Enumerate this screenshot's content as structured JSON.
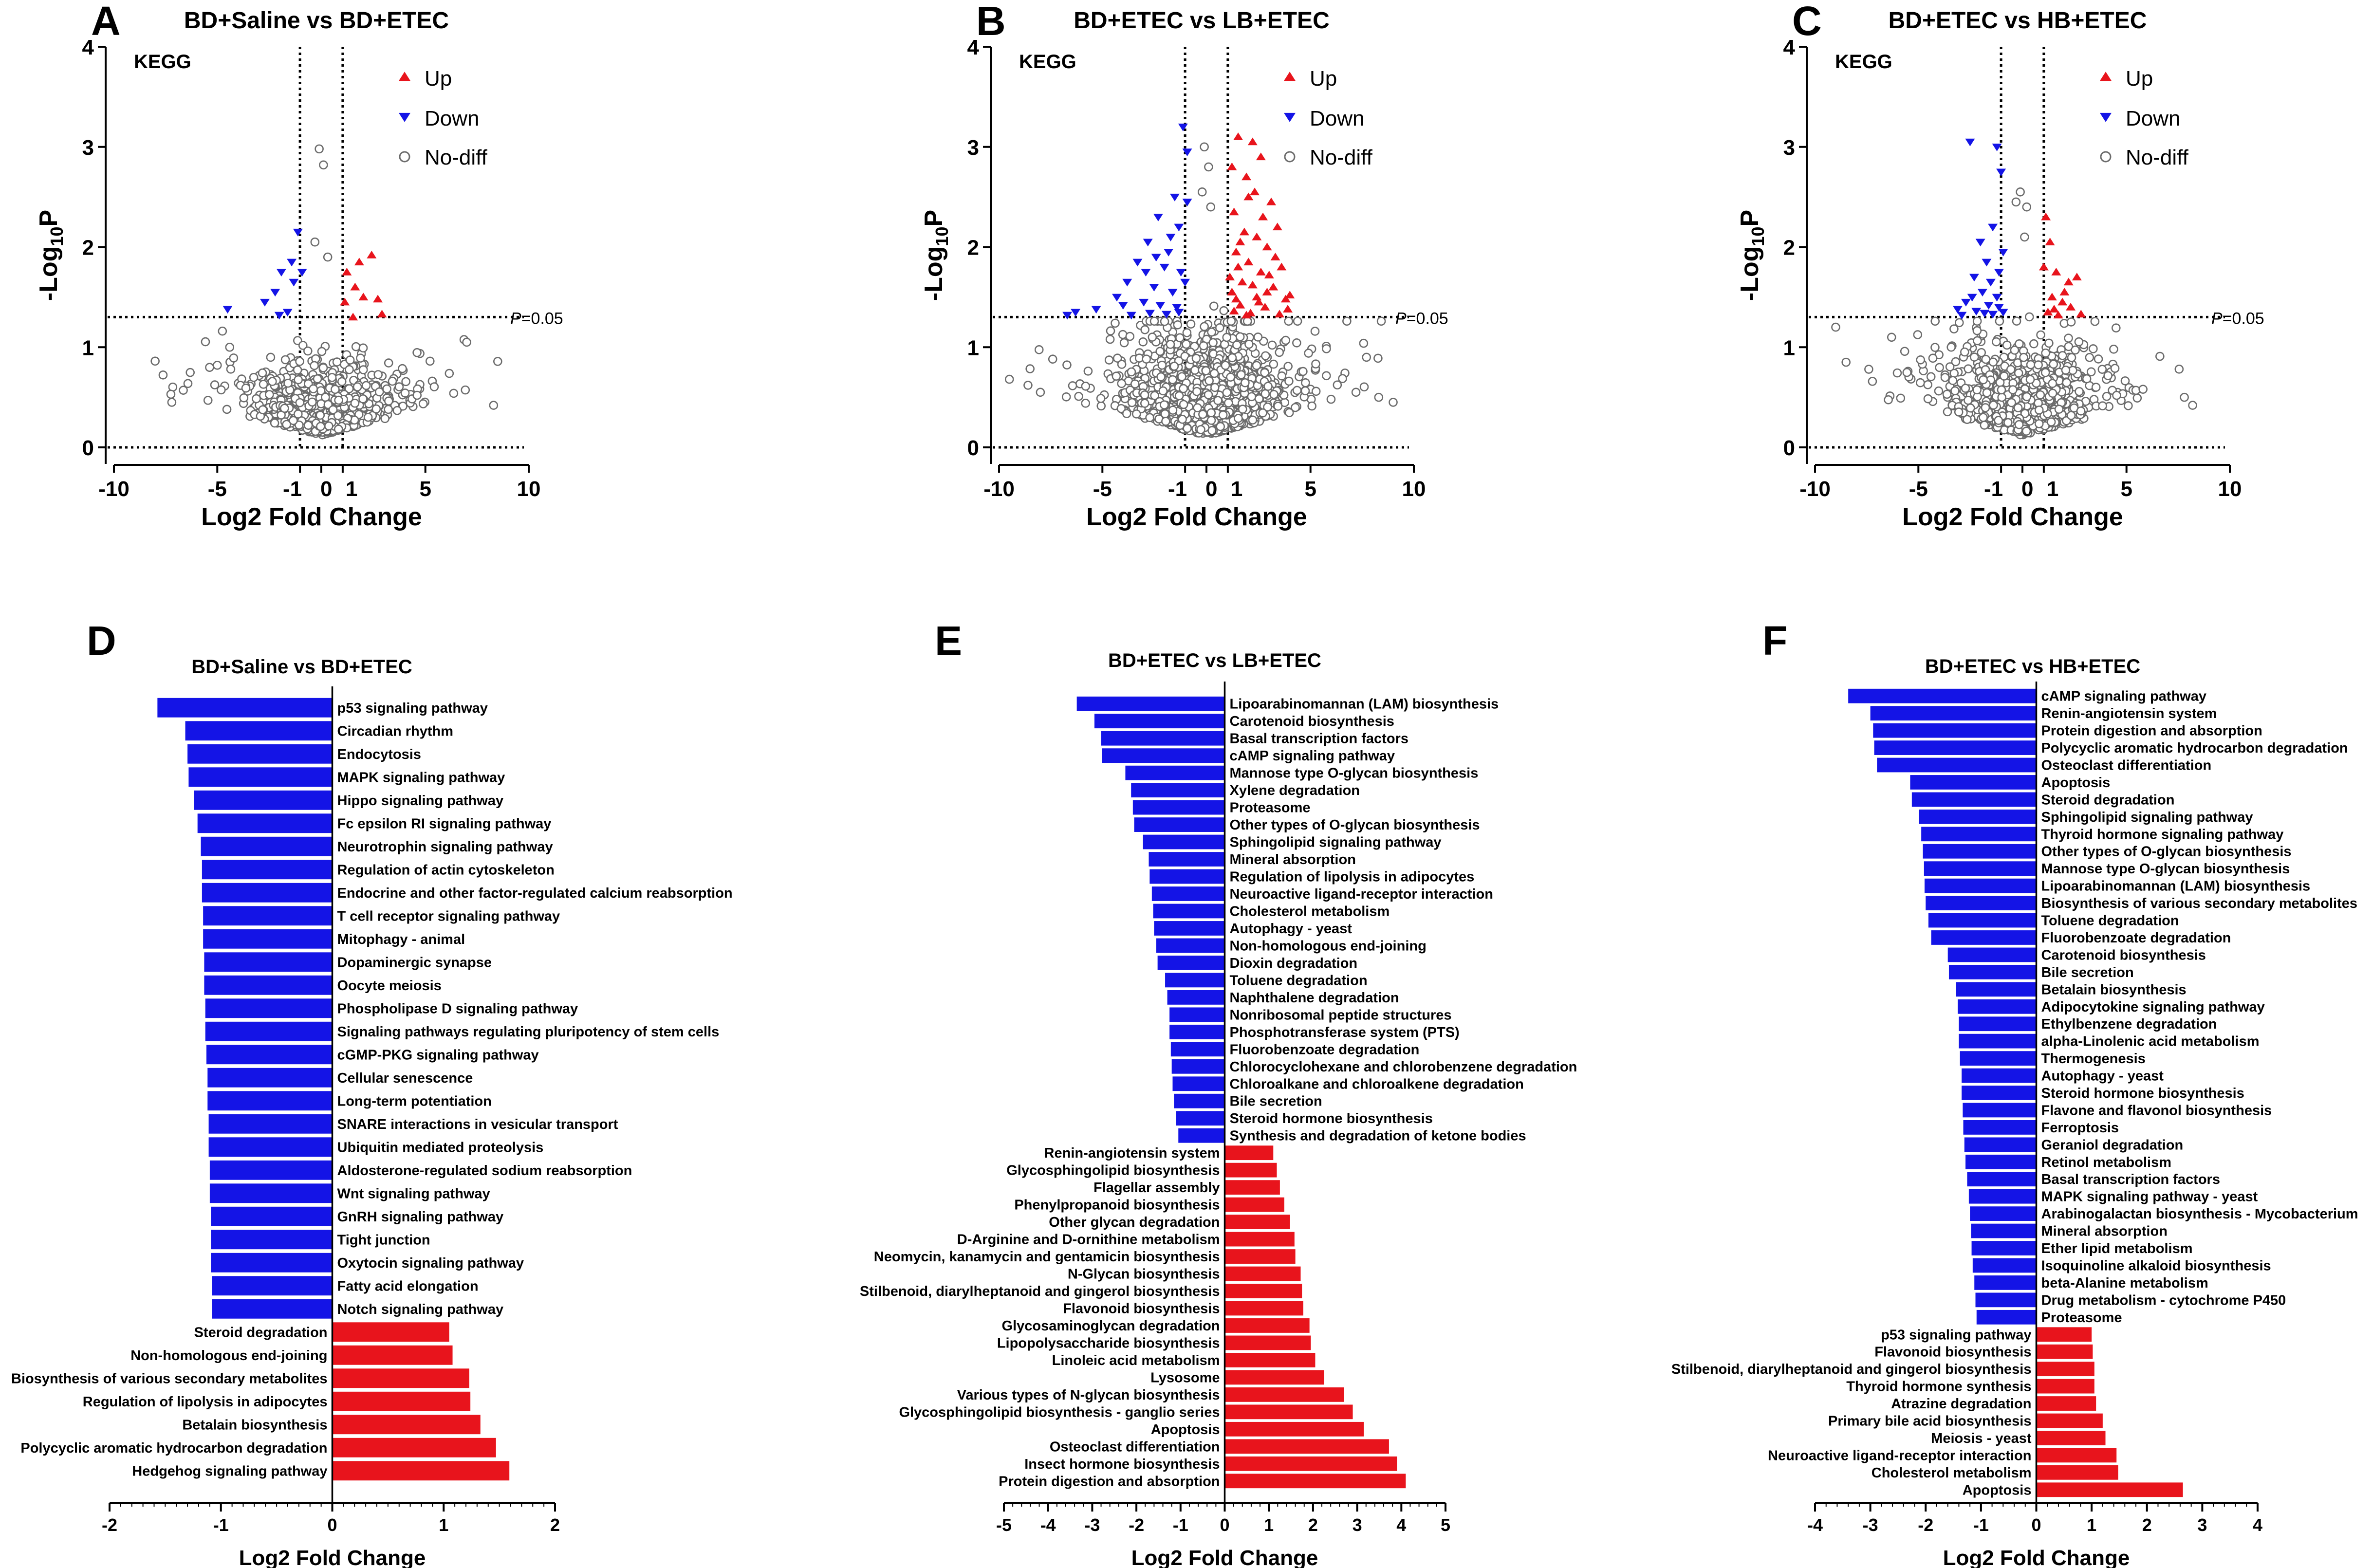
{
  "colors": {
    "up": "#e8141c",
    "down": "#1414e6",
    "nodiff": "#6b6b6b",
    "axis": "#000000"
  },
  "chart_data": [
    {
      "id": "A",
      "type": "scatter",
      "title": "BD+Saline vs BD+ETEC",
      "xlabel": "Log2 Fold Change",
      "ylabel": "-Log10P",
      "ylabel_main": "-Log",
      "ylabel_sub": "10",
      "ylabel_end": "P",
      "xlim": [
        -10,
        10
      ],
      "ylim": [
        0,
        4
      ],
      "xticks": [
        "-10",
        "-5",
        "-1",
        "0",
        "1",
        "5",
        "10"
      ],
      "yticks": [
        "0",
        "1",
        "2",
        "3",
        "4"
      ],
      "tag": "KEGG",
      "threshold_label": "P=0.05",
      "threshold_p": "P",
      "threshold_val": "=0.05",
      "threshold_y": 1.301,
      "legend": [
        "Up",
        "Down",
        "No-diff"
      ],
      "spread": 0.55,
      "nodiff_n": 900,
      "seed": 11,
      "up": [
        [
          1.2,
          1.75
        ],
        [
          1.6,
          1.6
        ],
        [
          2.4,
          1.92
        ],
        [
          1.1,
          1.45
        ],
        [
          1.8,
          1.85
        ],
        [
          2.0,
          1.5
        ],
        [
          2.7,
          1.48
        ],
        [
          2.9,
          1.33
        ],
        [
          1.5,
          1.3
        ]
      ],
      "down": [
        [
          -1.1,
          2.15
        ],
        [
          -1.3,
          1.65
        ],
        [
          -1.9,
          1.75
        ],
        [
          -2.2,
          1.55
        ],
        [
          -2.7,
          1.45
        ],
        [
          -4.5,
          1.38
        ],
        [
          -1.4,
          1.85
        ],
        [
          -1.6,
          1.35
        ],
        [
          -2.0,
          1.32
        ],
        [
          -0.9,
          1.75
        ]
      ],
      "nodiff_extra": [
        [
          -0.1,
          2.98
        ],
        [
          0.1,
          2.82
        ],
        [
          -0.3,
          2.05
        ],
        [
          0.3,
          1.9
        ],
        [
          -4.4,
          1.0
        ],
        [
          -5.0,
          0.82
        ],
        [
          4.6,
          0.52
        ],
        [
          7.0,
          1.05
        ],
        [
          8.3,
          0.42
        ],
        [
          -7.2,
          0.45
        ]
      ]
    },
    {
      "id": "B",
      "type": "scatter",
      "title": "BD+ETEC vs LB+ETEC",
      "xlabel": "Log2 Fold Change",
      "ylabel": "-Log10P",
      "ylabel_main": "-Log",
      "ylabel_sub": "10",
      "ylabel_end": "P",
      "xlim": [
        -10,
        10
      ],
      "ylim": [
        0,
        4
      ],
      "xticks": [
        "-10",
        "-5",
        "-1",
        "0",
        "1",
        "5",
        "10"
      ],
      "yticks": [
        "0",
        "1",
        "2",
        "3",
        "4"
      ],
      "tag": "KEGG",
      "threshold_label": "P=0.05",
      "threshold_p": "P",
      "threshold_val": "=0.05",
      "threshold_y": 1.301,
      "legend": [
        "Up",
        "Down",
        "No-diff"
      ],
      "spread": 0.75,
      "nodiff_n": 1500,
      "seed": 23,
      "up": [
        [
          1.5,
          3.1
        ],
        [
          2.2,
          3.05
        ],
        [
          2.6,
          2.9
        ],
        [
          1.9,
          2.7
        ],
        [
          2.3,
          2.55
        ],
        [
          3.1,
          2.45
        ],
        [
          1.3,
          2.35
        ],
        [
          3.4,
          2.2
        ],
        [
          1.8,
          2.15
        ],
        [
          2.9,
          2.0
        ],
        [
          1.4,
          1.95
        ],
        [
          2.0,
          1.85
        ],
        [
          3.6,
          1.8
        ],
        [
          2.6,
          1.75
        ],
        [
          1.7,
          1.65
        ],
        [
          3.2,
          1.6
        ],
        [
          1.2,
          1.55
        ],
        [
          2.4,
          1.5
        ],
        [
          3.8,
          1.48
        ],
        [
          1.6,
          1.42
        ],
        [
          2.8,
          1.4
        ],
        [
          1.3,
          1.36
        ],
        [
          2.1,
          1.34
        ],
        [
          3.5,
          1.33
        ],
        [
          1.9,
          1.32
        ],
        [
          2.5,
          1.45
        ],
        [
          1.1,
          1.7
        ],
        [
          4.0,
          1.52
        ],
        [
          3.0,
          1.72
        ],
        [
          1.5,
          1.8
        ],
        [
          2.7,
          2.3
        ],
        [
          2.0,
          2.5
        ],
        [
          1.6,
          2.05
        ],
        [
          3.3,
          1.9
        ],
        [
          1.2,
          2.8
        ],
        [
          2.4,
          2.1
        ],
        [
          3.9,
          1.38
        ],
        [
          2.2,
          1.62
        ],
        [
          1.4,
          1.48
        ],
        [
          2.9,
          1.55
        ]
      ],
      "down": [
        [
          -1.1,
          3.2
        ],
        [
          -0.9,
          2.95
        ],
        [
          -1.5,
          2.5
        ],
        [
          -2.3,
          2.3
        ],
        [
          -1.3,
          2.2
        ],
        [
          -2.8,
          2.05
        ],
        [
          -1.8,
          1.95
        ],
        [
          -0.9,
          2.45
        ],
        [
          -3.3,
          1.85
        ],
        [
          -2.0,
          1.8
        ],
        [
          -1.2,
          1.75
        ],
        [
          -3.8,
          1.65
        ],
        [
          -2.5,
          1.6
        ],
        [
          -1.6,
          1.55
        ],
        [
          -4.3,
          1.5
        ],
        [
          -3.0,
          1.45
        ],
        [
          -2.2,
          1.42
        ],
        [
          -1.4,
          1.4
        ],
        [
          -5.3,
          1.38
        ],
        [
          -6.3,
          1.35
        ],
        [
          -6.7,
          1.32
        ],
        [
          -3.6,
          1.32
        ],
        [
          -2.7,
          1.34
        ],
        [
          -1.9,
          1.33
        ],
        [
          -1.0,
          1.65
        ],
        [
          -1.7,
          2.1
        ],
        [
          -2.9,
          1.75
        ],
        [
          -1.3,
          1.35
        ],
        [
          -4.0,
          1.42
        ],
        [
          -2.4,
          1.9
        ]
      ],
      "nodiff_extra": [
        [
          -0.1,
          3.0
        ],
        [
          0.1,
          2.8
        ],
        [
          -0.2,
          2.55
        ],
        [
          0.2,
          2.4
        ],
        [
          -9.5,
          0.68
        ],
        [
          -8.6,
          0.62
        ],
        [
          7.2,
          0.55
        ],
        [
          9.0,
          0.45
        ],
        [
          8.3,
          0.5
        ],
        [
          -8.0,
          0.55
        ]
      ]
    },
    {
      "id": "C",
      "type": "scatter",
      "title": "BD+ETEC vs HB+ETEC",
      "xlabel": "Log2 Fold Change",
      "ylabel": "-Log10P",
      "ylabel_main": "-Log",
      "ylabel_sub": "10",
      "ylabel_end": "P",
      "xlim": [
        -10,
        10
      ],
      "ylim": [
        0,
        4
      ],
      "xticks": [
        "-10",
        "-5",
        "-1",
        "0",
        "1",
        "5",
        "10"
      ],
      "yticks": [
        "0",
        "1",
        "2",
        "3",
        "4"
      ],
      "tag": "KEGG",
      "threshold_label": "P=0.05",
      "threshold_p": "P",
      "threshold_val": "=0.05",
      "threshold_y": 1.301,
      "legend": [
        "Up",
        "Down",
        "No-diff"
      ],
      "spread": 0.65,
      "nodiff_n": 1100,
      "seed": 37,
      "up": [
        [
          1.1,
          2.3
        ],
        [
          1.3,
          2.05
        ],
        [
          1.6,
          1.75
        ],
        [
          2.2,
          1.65
        ],
        [
          2.6,
          1.7
        ],
        [
          1.4,
          1.5
        ],
        [
          1.9,
          1.45
        ],
        [
          2.3,
          1.4
        ],
        [
          1.2,
          1.35
        ],
        [
          1.7,
          1.32
        ],
        [
          2.8,
          1.33
        ],
        [
          1.0,
          1.8
        ],
        [
          1.5,
          1.38
        ],
        [
          2.0,
          1.55
        ]
      ],
      "down": [
        [
          -2.5,
          3.05
        ],
        [
          -1.2,
          3.0
        ],
        [
          -1.0,
          2.75
        ],
        [
          -1.4,
          2.2
        ],
        [
          -2.0,
          2.05
        ],
        [
          -0.9,
          1.95
        ],
        [
          -1.7,
          1.85
        ],
        [
          -1.1,
          1.75
        ],
        [
          -2.3,
          1.7
        ],
        [
          -1.5,
          1.65
        ],
        [
          -1.9,
          1.55
        ],
        [
          -1.2,
          1.5
        ],
        [
          -2.7,
          1.45
        ],
        [
          -1.6,
          1.42
        ],
        [
          -3.1,
          1.38
        ],
        [
          -2.2,
          1.36
        ],
        [
          -0.9,
          1.35
        ],
        [
          -1.4,
          1.33
        ],
        [
          -2.9,
          1.32
        ],
        [
          -1.8,
          1.34
        ],
        [
          -1.1,
          1.4
        ],
        [
          -2.4,
          1.5
        ]
      ],
      "nodiff_extra": [
        [
          -0.3,
          2.45
        ],
        [
          0.2,
          2.4
        ],
        [
          0.1,
          2.1
        ],
        [
          -0.1,
          2.55
        ],
        [
          -9.0,
          1.2
        ],
        [
          -8.5,
          0.85
        ],
        [
          -7.4,
          0.78
        ],
        [
          5.8,
          0.58
        ],
        [
          7.8,
          0.5
        ],
        [
          8.2,
          0.42
        ]
      ]
    },
    {
      "id": "D",
      "type": "bar",
      "orientation": "horizontal",
      "title": "BD+Saline vs BD+ETEC",
      "xlabel": "Log2 Fold Change",
      "xlim": [
        -2,
        2
      ],
      "xticks": [
        "-2",
        "-1",
        "0",
        "1",
        "2"
      ],
      "categories": [
        "p53 signaling pathway",
        "Circadian rhythm",
        "Endocytosis",
        "MAPK signaling pathway",
        "Hippo signaling pathway",
        "Fc epsilon RI signaling pathway",
        "Neurotrophin signaling pathway",
        "Regulation of actin cytoskeleton",
        "Endocrine and other factor-regulated calcium reabsorption",
        "T cell receptor signaling pathway",
        "Mitophagy - animal",
        "Dopaminergic synapse",
        "Oocyte meiosis",
        "Phospholipase D signaling pathway",
        "Signaling pathways regulating pluripotency of stem cells",
        "cGMP-PKG signaling pathway",
        "Cellular senescence",
        "Long-term potentiation",
        "SNARE interactions in vesicular transport",
        "Ubiquitin mediated proteolysis",
        "Aldosterone-regulated sodium reabsorption",
        "Wnt signaling pathway",
        "GnRH signaling pathway",
        "Tight junction",
        "Oxytocin signaling pathway",
        "Fatty acid elongation",
        "Notch signaling pathway",
        "Steroid degradation",
        "Non-homologous end-joining",
        "Biosynthesis of various secondary metabolites",
        "Regulation of lipolysis in adipocytes",
        "Betalain biosynthesis",
        "Polycyclic aromatic hydrocarbon degradation",
        "Hedgehog signaling pathway"
      ],
      "values": [
        -1.57,
        -1.32,
        -1.3,
        -1.29,
        -1.24,
        -1.21,
        -1.18,
        -1.17,
        -1.17,
        -1.16,
        -1.16,
        -1.15,
        -1.15,
        -1.14,
        -1.14,
        -1.13,
        -1.12,
        -1.12,
        -1.11,
        -1.11,
        -1.1,
        -1.1,
        -1.09,
        -1.09,
        -1.09,
        -1.08,
        -1.08,
        1.05,
        1.08,
        1.23,
        1.24,
        1.33,
        1.47,
        1.59
      ]
    },
    {
      "id": "E",
      "type": "bar",
      "orientation": "horizontal",
      "title": "BD+ETEC vs LB+ETEC",
      "xlabel": "Log2 Fold Change",
      "xlim": [
        -5,
        5
      ],
      "xticks": [
        "-5",
        "-4",
        "-3",
        "-2",
        "-1",
        "0",
        "1",
        "2",
        "3",
        "4",
        "5"
      ],
      "categories": [
        "Lipoarabinomannan (LAM) biosynthesis",
        "Carotenoid biosynthesis",
        "Basal transcription factors",
        "cAMP signaling pathway",
        "Mannose type O-glycan biosynthesis",
        "Xylene degradation",
        "Proteasome",
        "Other types of O-glycan biosynthesis",
        "Sphingolipid signaling pathway",
        "Mineral absorption",
        "Regulation of lipolysis in adipocytes",
        "Neuroactive ligand-receptor interaction",
        "Cholesterol metabolism",
        "Autophagy - yeast",
        "Non-homologous end-joining",
        "Dioxin degradation",
        "Toluene degradation",
        "Naphthalene degradation",
        "Nonribosomal peptide structures",
        "Phosphotransferase system (PTS)",
        "Fluorobenzoate degradation",
        "Chlorocyclohexane and chlorobenzene degradation",
        "Chloroalkane and chloroalkene degradation",
        "Bile secretion",
        "Steroid hormone biosynthesis",
        "Synthesis and degradation of ketone bodies",
        "Renin-angiotensin system",
        "Glycosphingolipid biosynthesis",
        "Flagellar assembly",
        "Phenylpropanoid biosynthesis",
        "Other glycan degradation",
        "D-Arginine and D-ornithine metabolism",
        "Neomycin, kanamycin and gentamicin biosynthesis",
        "N-Glycan biosynthesis",
        "Stilbenoid, diarylheptanoid and gingerol biosynthesis",
        "Flavonoid biosynthesis",
        "Glycosaminoglycan degradation",
        "Lipopolysaccharide biosynthesis",
        "Linoleic acid metabolism",
        "Lysosome",
        "Various types of N-glycan biosynthesis",
        "Glycosphingolipid biosynthesis - ganglio series",
        "Apoptosis",
        "Osteoclast differentiation",
        "Insect hormone biosynthesis",
        "Protein digestion and absorption"
      ],
      "values": [
        -3.35,
        -2.95,
        -2.8,
        -2.78,
        -2.25,
        -2.12,
        -2.08,
        -2.05,
        -1.85,
        -1.72,
        -1.7,
        -1.65,
        -1.62,
        -1.6,
        -1.55,
        -1.52,
        -1.35,
        -1.3,
        -1.25,
        -1.25,
        -1.22,
        -1.2,
        -1.18,
        -1.15,
        -1.1,
        -1.05,
        1.1,
        1.18,
        1.25,
        1.35,
        1.48,
        1.58,
        1.6,
        1.72,
        1.75,
        1.78,
        1.92,
        1.95,
        2.05,
        2.25,
        2.7,
        2.9,
        3.15,
        3.72,
        3.9,
        4.1
      ]
    },
    {
      "id": "F",
      "type": "bar",
      "orientation": "horizontal",
      "title": "BD+ETEC vs HB+ETEC",
      "xlabel": "Log2 Fold Change",
      "xlim": [
        -4,
        4
      ],
      "xticks": [
        "-4",
        "-3",
        "-2",
        "-1",
        "0",
        "1",
        "2",
        "3",
        "4"
      ],
      "categories": [
        "cAMP signaling pathway",
        "Renin-angiotensin system",
        "Protein digestion and absorption",
        "Polycyclic aromatic hydrocarbon degradation",
        "Osteoclast differentiation",
        "Apoptosis",
        "Steroid degradation",
        "Sphingolipid signaling pathway",
        "Thyroid hormone signaling pathway",
        "Other types of O-glycan biosynthesis",
        "Mannose type O-glycan biosynthesis",
        "Lipoarabinomannan (LAM) biosynthesis",
        "Biosynthesis of various secondary metabolites",
        "Toluene degradation",
        "Fluorobenzoate degradation",
        "Carotenoid biosynthesis",
        "Bile secretion",
        "Betalain biosynthesis",
        "Adipocytokine signaling pathway",
        "Ethylbenzene degradation",
        "alpha-Linolenic acid metabolism",
        "Thermogenesis",
        "Autophagy - yeast",
        "Steroid hormone biosynthesis",
        "Flavone and flavonol biosynthesis",
        "Ferroptosis",
        "Geraniol degradation",
        "Retinol metabolism",
        "Basal transcription factors",
        "MAPK signaling pathway - yeast",
        "Arabinogalactan biosynthesis - Mycobacterium",
        "Mineral absorption",
        "Ether lipid metabolism",
        "Isoquinoline alkaloid biosynthesis",
        "beta-Alanine metabolism",
        "Drug metabolism - cytochrome P450",
        "Proteasome",
        "p53 signaling pathway",
        "Flavonoid biosynthesis",
        "Stilbenoid, diarylheptanoid and gingerol biosynthesis",
        "Thyroid hormone synthesis",
        "Atrazine degradation",
        "Primary bile acid biosynthesis",
        "Meiosis - yeast",
        "Neuroactive ligand-receptor interaction",
        "Cholesterol metabolism",
        "Apoptosis"
      ],
      "values": [
        -3.4,
        -3.0,
        -2.95,
        -2.93,
        -2.88,
        -2.28,
        -2.25,
        -2.12,
        -2.08,
        -2.05,
        -2.03,
        -2.02,
        -2.0,
        -1.95,
        -1.9,
        -1.6,
        -1.58,
        -1.45,
        -1.42,
        -1.4,
        -1.4,
        -1.38,
        -1.35,
        -1.35,
        -1.33,
        -1.32,
        -1.3,
        -1.28,
        -1.25,
        -1.22,
        -1.2,
        -1.18,
        -1.17,
        -1.15,
        -1.12,
        -1.1,
        -1.08,
        1.0,
        1.02,
        1.05,
        1.05,
        1.08,
        1.2,
        1.25,
        1.45,
        1.48,
        2.65
      ]
    }
  ]
}
